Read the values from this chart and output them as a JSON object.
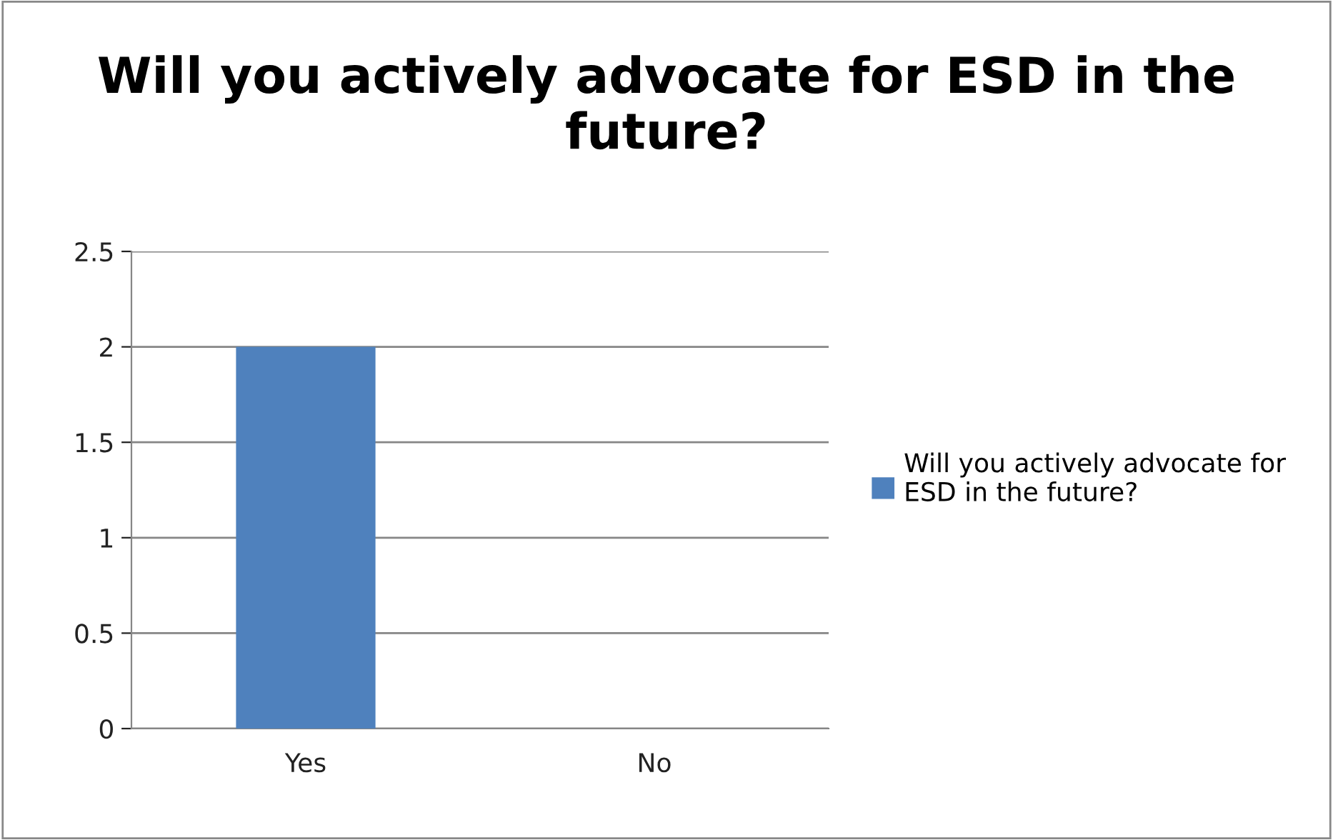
{
  "chart_data": {
    "type": "bar",
    "title": "Will you actively advocate for ESD in the future?",
    "categories": [
      "Yes",
      "No"
    ],
    "series": [
      {
        "name": "Will you actively advocate for ESD in the future?",
        "color": "#4f81bd",
        "values": [
          2,
          0
        ]
      }
    ],
    "ylim": [
      0,
      2.5
    ],
    "yticks": [
      0,
      0.5,
      1,
      1.5,
      2,
      2.5
    ],
    "grid": "y",
    "legend": "right"
  }
}
